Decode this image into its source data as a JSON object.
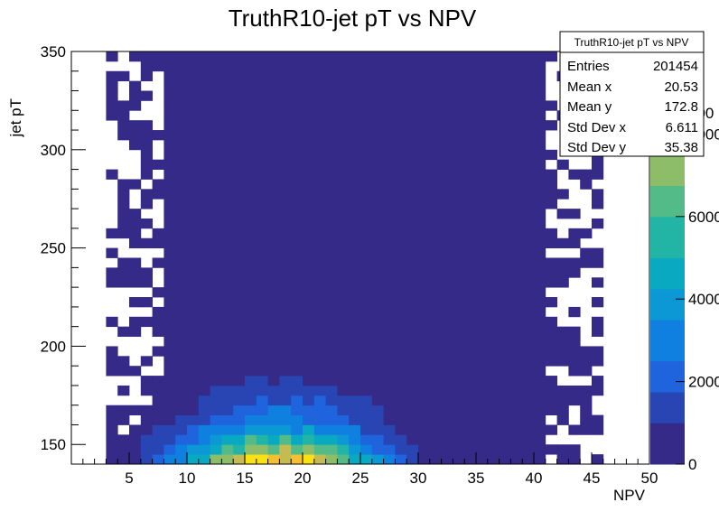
{
  "chart_data": {
    "type": "heatmap",
    "title": "TruthR10-jet pT vs NPV",
    "xlabel": "NPV",
    "ylabel": "jet pT",
    "xlim": [
      0,
      50
    ],
    "ylim": [
      140,
      350
    ],
    "x_ticks": [
      "5",
      "10",
      "15",
      "20",
      "25",
      "30",
      "35",
      "40",
      "45",
      "50"
    ],
    "y_ticks": [
      "150",
      "200",
      "250",
      "300",
      "350"
    ],
    "colorbar": {
      "range": [
        0,
        10000
      ],
      "ticks": [
        "0",
        "2000",
        "4000",
        "6000",
        "8000"
      ],
      "top_label_partial": "000"
    },
    "bins": {
      "x_bins": 50,
      "y_bins": 42,
      "x_width": 1,
      "y_width": 5
    },
    "stats_box": {
      "header": "TruthR10-jet pT vs NPV",
      "rows": [
        {
          "label": "Entries",
          "value": "201454"
        },
        {
          "label": "Mean x",
          "value": "20.53"
        },
        {
          "label": "Mean y",
          "value": "172.8"
        },
        {
          "label": "Std Dev x",
          "value": "6.611"
        },
        {
          "label": "Std Dev y",
          "value": "35.38"
        }
      ]
    },
    "distribution": {
      "peak_npv": 18,
      "peak_pt": 140,
      "peak_count": 10000,
      "sigma_npv": 5.8,
      "pt_falloff": 17,
      "npv_range": [
        3,
        46
      ],
      "shape_note": "counts peak at low pT around NPV 17-20 and fall off steeply with pT; sparse low-count cells elsewhere"
    }
  },
  "colors": {
    "palette": [
      "#352a87",
      "#2945b3",
      "#1f63dd",
      "#0f80e0",
      "#0b98d4",
      "#09aac1",
      "#22b5a6",
      "#52bb87",
      "#8ebd6a",
      "#c4bc52",
      "#f4c02f",
      "#f9e113"
    ]
  }
}
